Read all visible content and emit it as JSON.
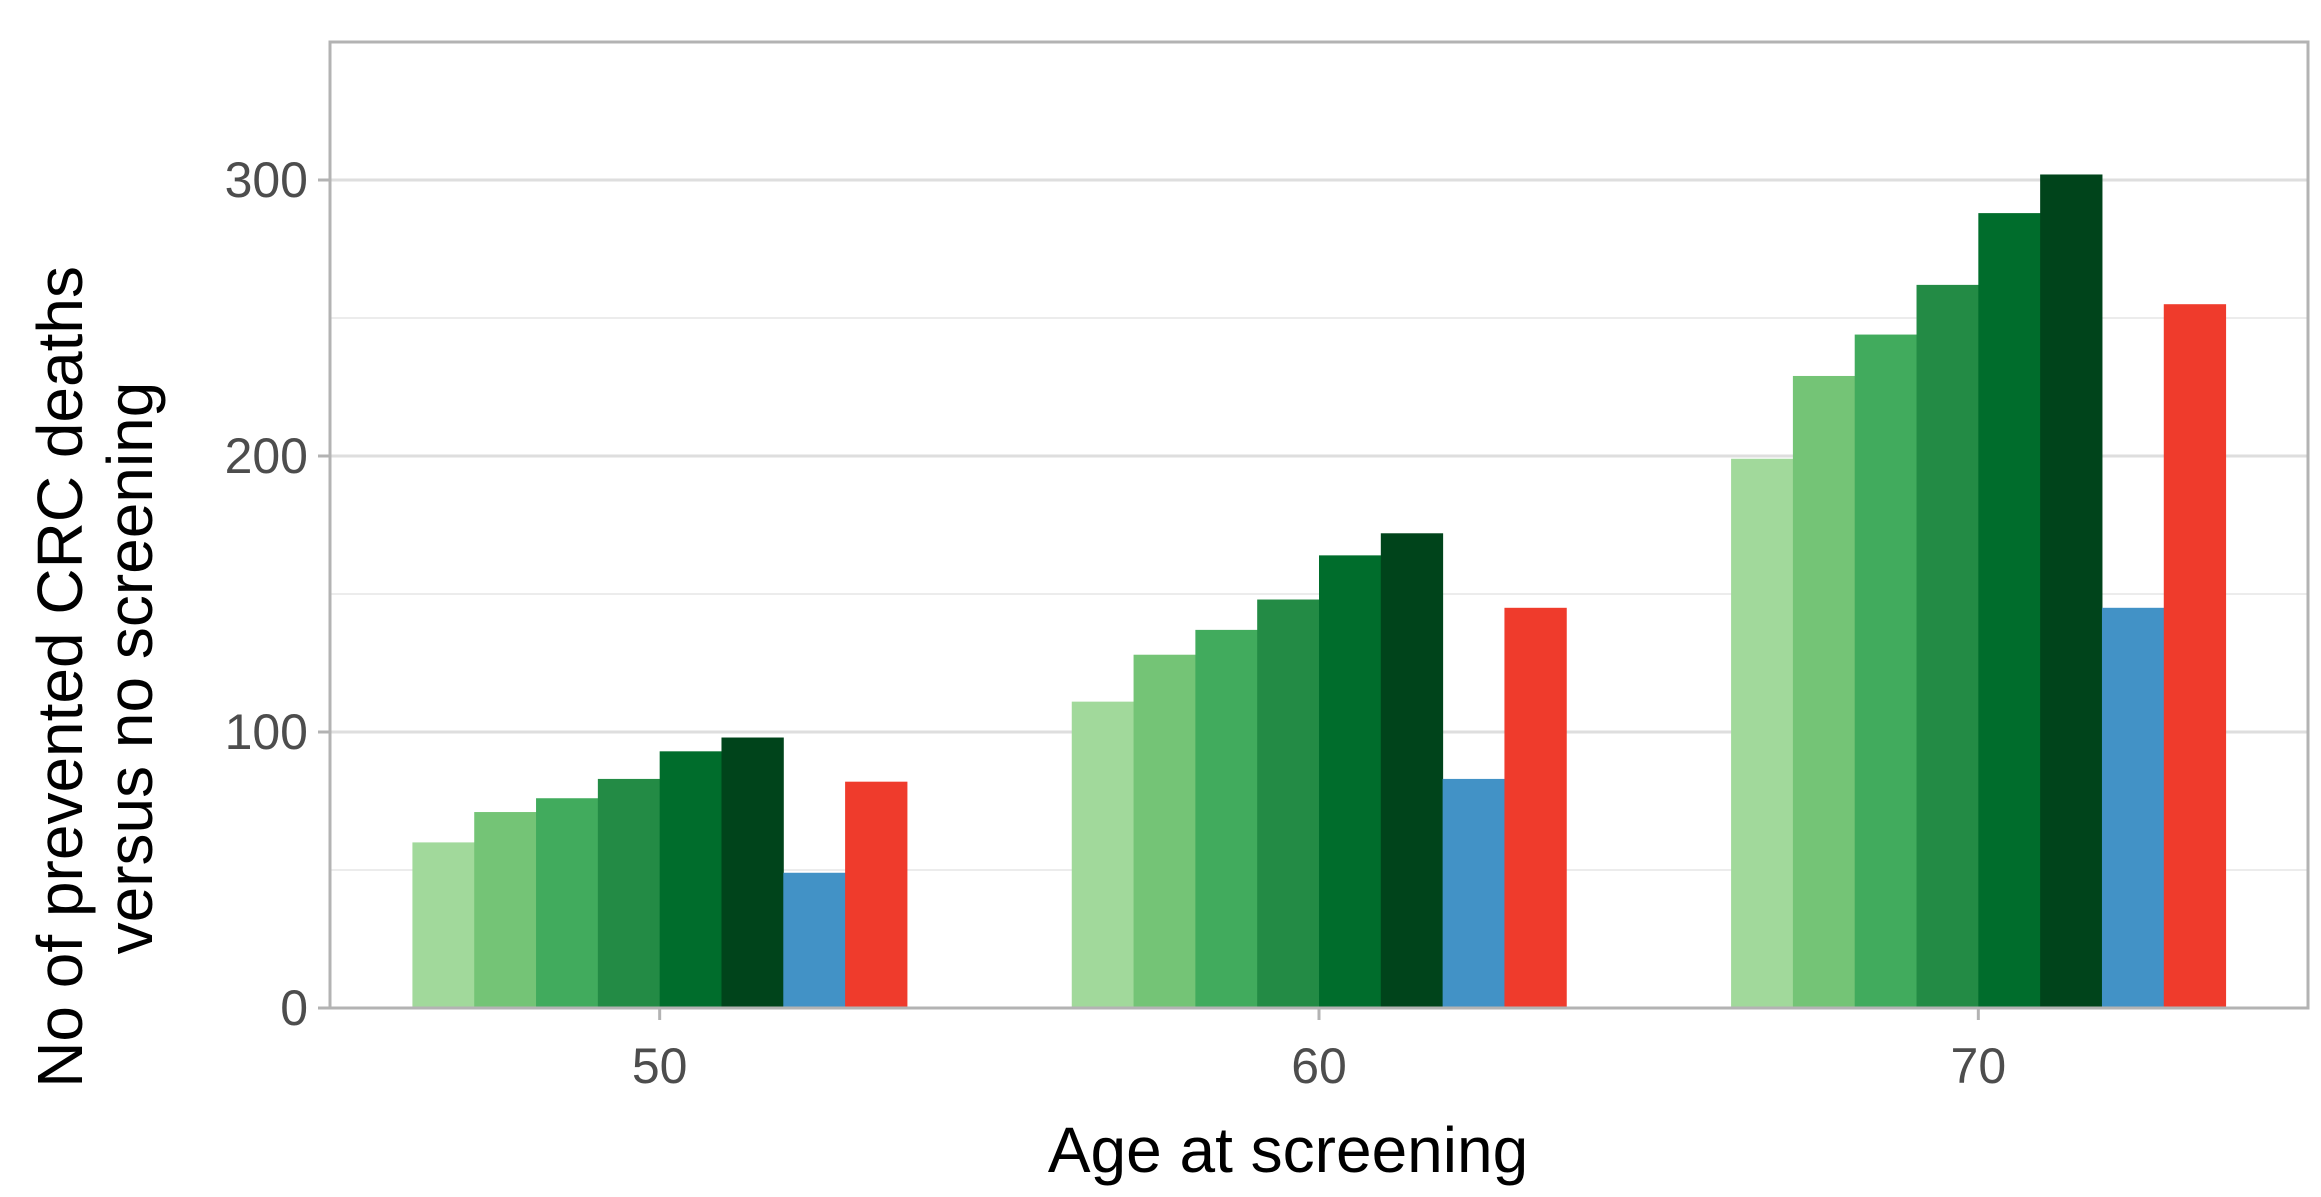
{
  "chart_data": {
    "type": "bar",
    "title": "",
    "xlabel": "Age at screening",
    "ylabel_lines": [
      "No of prevented CRC deaths",
      "versus no screening"
    ],
    "categories": [
      "50",
      "60",
      "70"
    ],
    "ylim": [
      0,
      350
    ],
    "y_major_ticks": [
      0,
      100,
      200,
      300
    ],
    "y_minor_ticks": [
      50,
      150,
      250
    ],
    "grid": true,
    "legend": "none",
    "series": [
      {
        "color": "#a1d99b",
        "values": [
          60,
          111,
          199
        ]
      },
      {
        "color": "#74c476",
        "values": [
          71,
          128,
          229
        ]
      },
      {
        "color": "#41ab5d",
        "values": [
          76,
          137,
          244
        ]
      },
      {
        "color": "#238b45",
        "values": [
          83,
          148,
          262
        ]
      },
      {
        "color": "#006d2c",
        "values": [
          93,
          164,
          288
        ]
      },
      {
        "color": "#00441b",
        "values": [
          98,
          172,
          302
        ]
      },
      {
        "color": "#4292c6",
        "values": [
          49,
          83,
          145
        ]
      },
      {
        "color": "#ef3b2c",
        "values": [
          82,
          145,
          255
        ]
      }
    ]
  }
}
